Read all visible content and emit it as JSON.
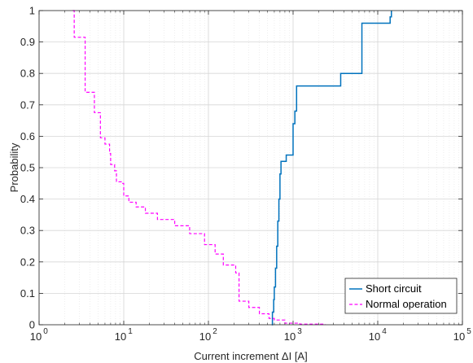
{
  "chart_data": {
    "type": "line",
    "title": "",
    "xlabel": "Current increment ΔI [A]",
    "ylabel": "Probability",
    "xscale": "log",
    "xlim": [
      1,
      100000
    ],
    "ylim": [
      0,
      1
    ],
    "grid": true,
    "legend_position": "bottom-right",
    "x_ticks": [
      {
        "base": "10",
        "exp": "0"
      },
      {
        "base": "10",
        "exp": "1"
      },
      {
        "base": "10",
        "exp": "2"
      },
      {
        "base": "10",
        "exp": "3"
      },
      {
        "base": "10",
        "exp": "4"
      },
      {
        "base": "10",
        "exp": "5"
      }
    ],
    "y_ticks": [
      "0",
      "0.1",
      "0.2",
      "0.3",
      "0.4",
      "0.5",
      "0.6",
      "0.7",
      "0.8",
      "0.9",
      "1"
    ],
    "series": [
      {
        "name": "Short circuit",
        "color": "#0072BD",
        "style": "solid",
        "step": true,
        "x": [
          560,
          570,
          590,
          600,
          620,
          640,
          660,
          680,
          700,
          720,
          800,
          830,
          950,
          1000,
          1050,
          1100,
          3500,
          3650,
          6500,
          6700,
          14000,
          14500
        ],
        "y": [
          0.0,
          0.04,
          0.08,
          0.12,
          0.18,
          0.25,
          0.33,
          0.4,
          0.48,
          0.52,
          0.52,
          0.54,
          0.54,
          0.64,
          0.68,
          0.76,
          0.76,
          0.8,
          0.96,
          0.96,
          0.98,
          1.0
        ]
      },
      {
        "name": "Normal operation",
        "color": "#FF00FF",
        "style": "dashed",
        "step": true,
        "x": [
          2.5,
          2.6,
          3.3,
          3.5,
          4.2,
          4.5,
          5.0,
          5.3,
          6.0,
          6.8,
          7.0,
          7.8,
          8.2,
          9.5,
          10.0,
          11.5,
          14,
          18,
          25,
          40,
          60,
          90,
          120,
          150,
          210,
          230,
          300,
          400,
          520,
          600,
          800,
          1200,
          2400
        ],
        "y": [
          1.0,
          0.915,
          0.915,
          0.74,
          0.74,
          0.675,
          0.675,
          0.595,
          0.575,
          0.545,
          0.51,
          0.49,
          0.455,
          0.45,
          0.41,
          0.39,
          0.375,
          0.355,
          0.335,
          0.315,
          0.29,
          0.255,
          0.225,
          0.19,
          0.165,
          0.075,
          0.055,
          0.035,
          0.02,
          0.015,
          0.005,
          0.002,
          0.0
        ]
      }
    ]
  }
}
